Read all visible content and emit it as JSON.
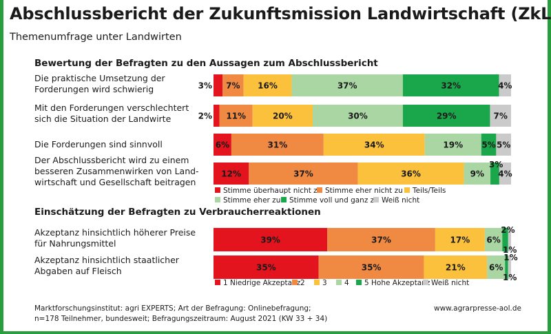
{
  "header": {
    "title": "Abschlussbericht der Zukunftsmission Landwirtschaft (ZkL)",
    "subtitle": "Themenumfrage unter Landwirten"
  },
  "footer": {
    "source_line1": "Marktforschungsinstitut: agri EXPERTS; Art der Befragung: Onlinebefragung;",
    "source_line2": "n=178 Teilnehmer, bundesweit; Befragungszeitraum: August 2021 (KW 33 + 34)",
    "website": "www.agrarpresse-aol.de"
  },
  "chart_data": [
    {
      "type": "bar",
      "orientation": "horizontal",
      "stacked": true,
      "title": "Bewertung der Befragten zu den Aussagen zum Abschlussbericht",
      "unit": "%",
      "categories": [
        [
          "Die praktische Umsetzung der",
          "Forderungen wird schwierig"
        ],
        [
          "Mit den Forderungen verschlechtert",
          "sich die Situation der Landwirte"
        ],
        [
          "Die Forderungen sind sinnvoll"
        ],
        [
          "Der Abschlussbericht wird zu einem",
          "besseren Zusammenwirken von Land-",
          "wirtschaft und Gesellschaft beitragen"
        ]
      ],
      "series": [
        {
          "name": "Stimme überhaupt nicht zu",
          "color": "#e3141d",
          "values": [
            3,
            2,
            6,
            12
          ]
        },
        {
          "name": "Stimme eher nicht zu",
          "color": "#f08a43",
          "values": [
            7,
            11,
            31,
            37
          ]
        },
        {
          "name": "Teils/Teils",
          "color": "#fcc13c",
          "values": [
            16,
            20,
            34,
            36
          ]
        },
        {
          "name": "Stimme eher zu",
          "color": "#a9d6a3",
          "values": [
            37,
            30,
            19,
            9
          ]
        },
        {
          "name": "Stimme voll und ganz zu",
          "color": "#1aa64a",
          "values": [
            32,
            29,
            5,
            3
          ]
        },
        {
          "name": "Weiß nicht",
          "color": "#cacaca",
          "values": [
            4,
            7,
            5,
            4
          ]
        }
      ],
      "legend": {
        "position": "bottom",
        "columns": 3
      }
    },
    {
      "type": "bar",
      "orientation": "horizontal",
      "stacked": true,
      "title": "Einschätzung der Befragten zu Verbraucherreaktionen",
      "unit": "%",
      "categories": [
        [
          "Akzeptanz hinsichtlich höherer Preise",
          "für Nahrungsmittel"
        ],
        [
          "Akzeptanz hinsichtlich staatlicher",
          "Abgaben auf Fleisch"
        ]
      ],
      "series": [
        {
          "name": "1 Niedrige Akzeptanz",
          "color": "#e3141d",
          "values": [
            39,
            35
          ]
        },
        {
          "name": "2",
          "color": "#f08a43",
          "values": [
            37,
            35
          ]
        },
        {
          "name": "3",
          "color": "#fcc13c",
          "values": [
            17,
            21
          ]
        },
        {
          "name": "4",
          "color": "#a9d6a3",
          "values": [
            6,
            6
          ]
        },
        {
          "name": "5 Hohe Akzeptanz",
          "color": "#1aa64a",
          "values": [
            2,
            1
          ]
        },
        {
          "name": "Weiß nicht",
          "color": "#cacaca",
          "values": [
            1,
            1
          ]
        }
      ],
      "legend": {
        "position": "bottom",
        "columns": 6
      }
    }
  ]
}
